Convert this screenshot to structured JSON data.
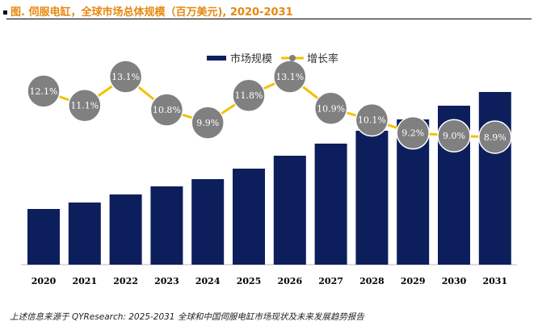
{
  "title": "图.  伺服电缸，全球市场总体规模（百万美元), 2020-2031",
  "source": "上述信息来源于 QYResearch: 2025-2031 全球和中国伺服电缸市场现状及未来发展趋势报告",
  "chart_data": {
    "type": "bar+line",
    "categories": [
      "2020",
      "2021",
      "2022",
      "2023",
      "2024",
      "2025",
      "2026",
      "2027",
      "2028",
      "2029",
      "2030",
      "2031"
    ],
    "series": [
      {
        "name": "市场规模",
        "type": "bar",
        "color": "#0c1f5c",
        "values": [
          69,
          77,
          87,
          97,
          106,
          119,
          135,
          150,
          166,
          180,
          197,
          214
        ],
        "note_unit": "relative (no axis printed)"
      },
      {
        "name": "增长率",
        "type": "line",
        "color": "#f2c200",
        "marker_color": "#808080",
        "values": [
          12.1,
          11.1,
          13.1,
          10.8,
          9.9,
          11.8,
          13.1,
          10.9,
          10.1,
          9.2,
          9.0,
          8.9
        ],
        "labels": [
          "12.1%",
          "11.1%",
          "13.1%",
          "10.8%",
          "9.9%",
          "11.8%",
          "13.1%",
          "10.9%",
          "10.1%",
          "9.2%",
          "9.0%",
          "8.9%"
        ]
      }
    ],
    "legend": "top-center",
    "grid": false
  }
}
